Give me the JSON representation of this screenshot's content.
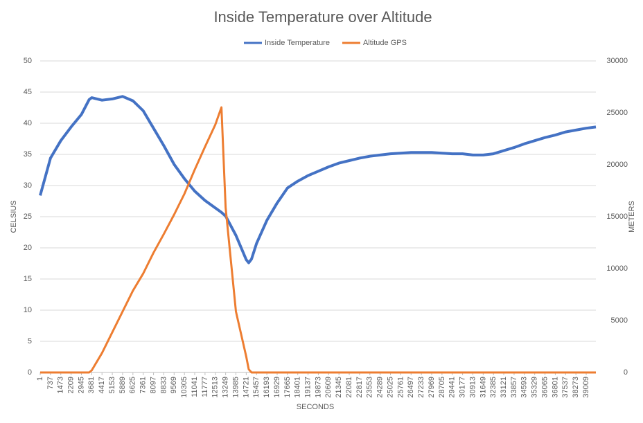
{
  "chart_data": {
    "type": "line",
    "title": "Inside Temperature over Altitude",
    "x_label": "SECONDS",
    "y_label": "CELSIUS",
    "y2_label": "METERS",
    "x": [
      1,
      737,
      1473,
      2209,
      2945,
      3500,
      3681,
      4417,
      5153,
      5889,
      6625,
      7361,
      8097,
      8833,
      9569,
      10305,
      11041,
      11777,
      12513,
      12950,
      13249,
      13985,
      14721,
      14900,
      15100,
      15457,
      16193,
      16929,
      17665,
      18401,
      19137,
      19873,
      20609,
      21345,
      22081,
      22817,
      23553,
      24289,
      25025,
      25761,
      26497,
      27233,
      27969,
      28705,
      29441,
      30177,
      30913,
      31649,
      32385,
      33121,
      33857,
      34593,
      35329,
      36065,
      36801,
      37537,
      38273,
      39009,
      39700
    ],
    "xlim": [
      1,
      39700
    ],
    "xticks": [
      1,
      737,
      1473,
      2209,
      2945,
      3681,
      4417,
      5153,
      5889,
      6625,
      7361,
      8097,
      8833,
      9569,
      10305,
      11041,
      11777,
      12513,
      13249,
      13985,
      14721,
      15457,
      16193,
      16929,
      17665,
      18401,
      19137,
      19873,
      20609,
      21345,
      22081,
      22817,
      23553,
      24289,
      25025,
      25761,
      26497,
      27233,
      27969,
      28705,
      29441,
      30177,
      30913,
      31649,
      32385,
      33121,
      33857,
      34593,
      35329,
      36065,
      36801,
      37537,
      38273,
      39009
    ],
    "ylim": [
      0,
      50
    ],
    "yticks": [
      0,
      5,
      10,
      15,
      20,
      25,
      30,
      35,
      40,
      45,
      50
    ],
    "y2lim": [
      0,
      30000
    ],
    "y2ticks": [
      0,
      5000,
      10000,
      15000,
      20000,
      25000,
      30000
    ],
    "grid": true,
    "legend": "top",
    "series": [
      {
        "name": "Inside Temperature",
        "color": "#4472c4",
        "values": [
          28.4,
          34.4,
          37.2,
          39.4,
          41.4,
          43.8,
          44.1,
          43.7,
          43.9,
          44.3,
          43.6,
          42,
          39.2,
          36.4,
          33.4,
          31.1,
          29.1,
          27.6,
          26.4,
          25.7,
          25.1,
          22,
          18.1,
          17.6,
          18.2,
          20.7,
          24.4,
          27.2,
          29.6,
          30.7,
          31.6,
          32.3,
          33,
          33.6,
          34,
          34.4,
          34.7,
          34.9,
          35.1,
          35.2,
          35.3,
          35.3,
          35.3,
          35.2,
          35.1,
          35.1,
          34.9,
          34.9,
          35.1,
          35.6,
          36.1,
          36.7,
          37.2,
          37.7,
          38.1,
          38.6,
          38.9,
          39.2,
          39.4
        ]
      },
      {
        "name": "Altitude GPS",
        "color": "#ed7d31",
        "axis": "y2",
        "values": [
          0,
          0,
          0,
          0,
          0,
          0,
          200,
          1870,
          3870,
          5870,
          7870,
          9530,
          11530,
          13330,
          15200,
          17200,
          19530,
          21730,
          23870,
          25530,
          15870,
          5870,
          1530,
          300,
          0,
          0,
          0,
          0,
          0,
          0,
          0,
          0,
          0,
          0,
          0,
          0,
          0,
          0,
          0,
          0,
          0,
          0,
          0,
          0,
          0,
          0,
          0,
          0,
          0,
          0,
          0,
          0,
          0,
          0,
          0,
          0,
          0,
          0,
          0
        ]
      }
    ]
  }
}
